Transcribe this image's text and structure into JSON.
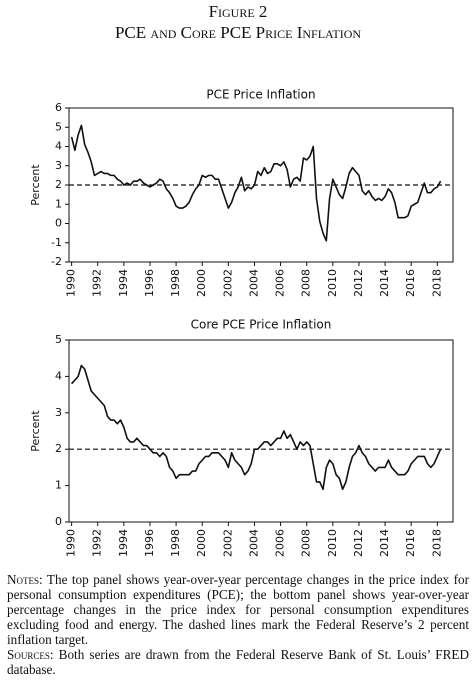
{
  "figure": {
    "label": "Figure 2",
    "title": "PCE and Core PCE Price Inflation"
  },
  "chart_data": [
    {
      "type": "line",
      "title": "PCE Price Inflation",
      "y_label": "Percent",
      "x": [
        1990,
        1990.25,
        1990.5,
        1990.75,
        1991,
        1991.25,
        1991.5,
        1991.75,
        1992,
        1992.25,
        1992.5,
        1992.75,
        1993,
        1993.25,
        1993.5,
        1993.75,
        1994,
        1994.25,
        1994.5,
        1994.75,
        1995,
        1995.25,
        1995.5,
        1995.75,
        1996,
        1996.25,
        1996.5,
        1996.75,
        1997,
        1997.25,
        1997.5,
        1997.75,
        1998,
        1998.25,
        1998.5,
        1998.75,
        1999,
        1999.25,
        1999.5,
        1999.75,
        2000,
        2000.25,
        2000.5,
        2000.75,
        2001,
        2001.25,
        2001.5,
        2001.75,
        2002,
        2002.25,
        2002.5,
        2002.75,
        2003,
        2003.25,
        2003.5,
        2003.75,
        2004,
        2004.25,
        2004.5,
        2004.75,
        2005,
        2005.25,
        2005.5,
        2005.75,
        2006,
        2006.25,
        2006.5,
        2006.75,
        2007,
        2007.25,
        2007.5,
        2007.75,
        2008,
        2008.25,
        2008.5,
        2008.75,
        2009,
        2009.25,
        2009.5,
        2009.75,
        2010,
        2010.25,
        2010.5,
        2010.75,
        2011,
        2011.25,
        2011.5,
        2011.75,
        2012,
        2012.25,
        2012.5,
        2012.75,
        2013,
        2013.25,
        2013.5,
        2013.75,
        2014,
        2014.25,
        2014.5,
        2014.75,
        2015,
        2015.25,
        2015.5,
        2015.75,
        2016,
        2016.25,
        2016.5,
        2016.75,
        2017,
        2017.25,
        2017.5,
        2017.75,
        2018,
        2018.25
      ],
      "series": [
        {
          "name": "PCE",
          "color": "#111111",
          "values": [
            4.5,
            3.8,
            4.6,
            5.1,
            4.1,
            3.7,
            3.2,
            2.5,
            2.6,
            2.7,
            2.6,
            2.6,
            2.5,
            2.5,
            2.3,
            2.2,
            2.0,
            2.1,
            2.0,
            2.2,
            2.2,
            2.3,
            2.1,
            2.0,
            1.9,
            2.0,
            2.1,
            2.3,
            2.2,
            1.8,
            1.6,
            1.3,
            0.9,
            0.8,
            0.8,
            0.9,
            1.1,
            1.5,
            1.8,
            2.0,
            2.5,
            2.4,
            2.5,
            2.5,
            2.3,
            2.3,
            1.8,
            1.3,
            0.8,
            1.1,
            1.6,
            1.9,
            2.4,
            1.7,
            1.9,
            1.8,
            2.0,
            2.7,
            2.5,
            2.9,
            2.6,
            2.7,
            3.1,
            3.1,
            3.0,
            3.2,
            2.8,
            1.9,
            2.3,
            2.4,
            2.2,
            3.4,
            3.3,
            3.5,
            4.0,
            1.3,
            0.1,
            -0.5,
            -0.9,
            1.3,
            2.3,
            1.9,
            1.5,
            1.3,
            1.9,
            2.6,
            2.9,
            2.7,
            2.5,
            1.7,
            1.5,
            1.7,
            1.4,
            1.2,
            1.3,
            1.2,
            1.4,
            1.8,
            1.6,
            1.1,
            0.3,
            0.3,
            0.3,
            0.4,
            0.9,
            1.0,
            1.1,
            1.6,
            2.1,
            1.6,
            1.6,
            1.8,
            1.9,
            2.2
          ]
        }
      ],
      "reference_line": 2,
      "xlim": [
        1989.8,
        2019.2
      ],
      "xticks": [
        1990,
        1992,
        1994,
        1996,
        1998,
        2000,
        2002,
        2004,
        2006,
        2008,
        2010,
        2012,
        2014,
        2016,
        2018
      ],
      "ylim": [
        -2,
        6
      ],
      "yticks": [
        -2,
        -1,
        0,
        1,
        2,
        3,
        4,
        5,
        6
      ]
    },
    {
      "type": "line",
      "title": "Core PCE Price Inflation",
      "y_label": "Percent",
      "x": [
        1990,
        1990.25,
        1990.5,
        1990.75,
        1991,
        1991.25,
        1991.5,
        1991.75,
        1992,
        1992.25,
        1992.5,
        1992.75,
        1993,
        1993.25,
        1993.5,
        1993.75,
        1994,
        1994.25,
        1994.5,
        1994.75,
        1995,
        1995.25,
        1995.5,
        1995.75,
        1996,
        1996.25,
        1996.5,
        1996.75,
        1997,
        1997.25,
        1997.5,
        1997.75,
        1998,
        1998.25,
        1998.5,
        1998.75,
        1999,
        1999.25,
        1999.5,
        1999.75,
        2000,
        2000.25,
        2000.5,
        2000.75,
        2001,
        2001.25,
        2001.5,
        2001.75,
        2002,
        2002.25,
        2002.5,
        2002.75,
        2003,
        2003.25,
        2003.5,
        2003.75,
        2004,
        2004.25,
        2004.5,
        2004.75,
        2005,
        2005.25,
        2005.5,
        2005.75,
        2006,
        2006.25,
        2006.5,
        2006.75,
        2007,
        2007.25,
        2007.5,
        2007.75,
        2008,
        2008.25,
        2008.5,
        2008.75,
        2009,
        2009.25,
        2009.5,
        2009.75,
        2010,
        2010.25,
        2010.5,
        2010.75,
        2011,
        2011.25,
        2011.5,
        2011.75,
        2012,
        2012.25,
        2012.5,
        2012.75,
        2013,
        2013.25,
        2013.5,
        2013.75,
        2014,
        2014.25,
        2014.5,
        2014.75,
        2015,
        2015.25,
        2015.5,
        2015.75,
        2016,
        2016.25,
        2016.5,
        2016.75,
        2017,
        2017.25,
        2017.5,
        2017.75,
        2018,
        2018.25
      ],
      "series": [
        {
          "name": "Core PCE",
          "color": "#111111",
          "values": [
            3.8,
            3.9,
            4.0,
            4.3,
            4.2,
            3.9,
            3.6,
            3.5,
            3.4,
            3.3,
            3.2,
            2.9,
            2.8,
            2.8,
            2.7,
            2.8,
            2.6,
            2.3,
            2.2,
            2.2,
            2.3,
            2.2,
            2.1,
            2.1,
            2.0,
            1.9,
            1.9,
            1.8,
            1.9,
            1.8,
            1.5,
            1.4,
            1.2,
            1.3,
            1.3,
            1.3,
            1.3,
            1.4,
            1.4,
            1.6,
            1.7,
            1.8,
            1.8,
            1.9,
            1.9,
            1.9,
            1.8,
            1.7,
            1.5,
            1.9,
            1.7,
            1.6,
            1.5,
            1.3,
            1.4,
            1.6,
            2.0,
            2.0,
            2.1,
            2.2,
            2.2,
            2.1,
            2.2,
            2.3,
            2.3,
            2.5,
            2.3,
            2.4,
            2.2,
            2.0,
            2.2,
            2.1,
            2.2,
            2.1,
            1.6,
            1.1,
            1.1,
            0.9,
            1.5,
            1.7,
            1.6,
            1.3,
            1.2,
            0.9,
            1.1,
            1.5,
            1.8,
            1.9,
            2.1,
            1.9,
            1.8,
            1.6,
            1.5,
            1.4,
            1.5,
            1.5,
            1.5,
            1.7,
            1.5,
            1.4,
            1.3,
            1.3,
            1.3,
            1.4,
            1.6,
            1.7,
            1.8,
            1.8,
            1.8,
            1.6,
            1.5,
            1.6,
            1.8,
            2.0
          ]
        }
      ],
      "reference_line": 2,
      "xlim": [
        1989.8,
        2019.2
      ],
      "xticks": [
        1990,
        1992,
        1994,
        1996,
        1998,
        2000,
        2002,
        2004,
        2006,
        2008,
        2010,
        2012,
        2014,
        2016,
        2018
      ],
      "ylim": [
        0,
        5
      ],
      "yticks": [
        0,
        1,
        2,
        3,
        4,
        5
      ]
    }
  ],
  "notes": {
    "label": "Notes:",
    "text": "The top panel shows year-over-year percentage changes in the price index for personal consumption expenditures (PCE); the bottom panel shows year-over-year percentage changes in the price index for personal consumption expenditures excluding food and energy. The dashed lines mark the Federal Reserve’s 2 percent inflation target."
  },
  "sources": {
    "label": "Sources:",
    "text": "Both series are drawn from the Federal Reserve Bank of St. Louis’ FRED database."
  }
}
